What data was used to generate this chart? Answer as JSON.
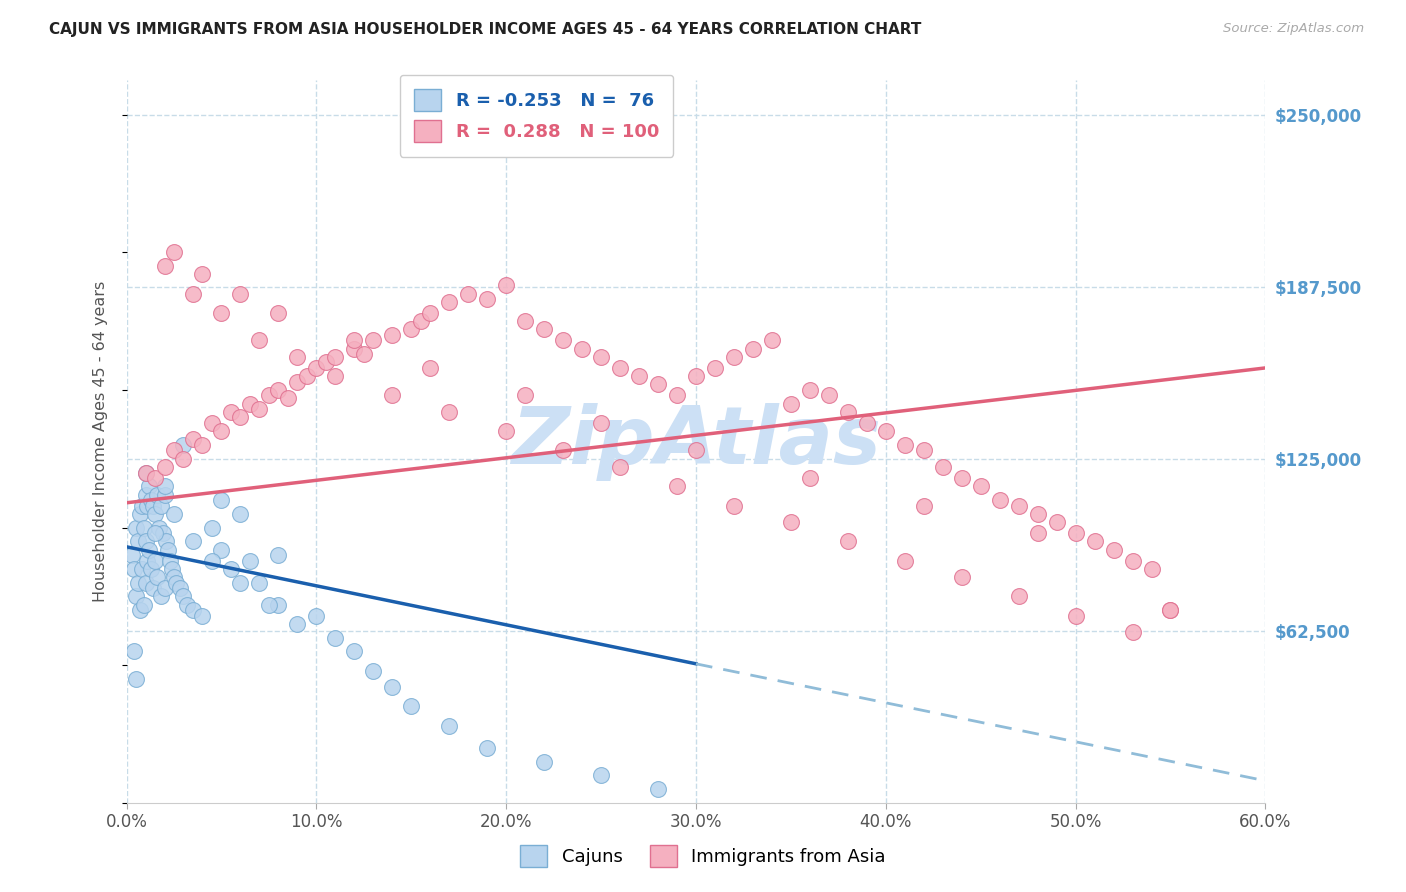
{
  "title": "CAJUN VS IMMIGRANTS FROM ASIA HOUSEHOLDER INCOME AGES 45 - 64 YEARS CORRELATION CHART",
  "source": "Source: ZipAtlas.com",
  "xlabel_vals": [
    0,
    10,
    20,
    30,
    40,
    50,
    60
  ],
  "ylabel_vals": [
    62500,
    125000,
    187500,
    250000
  ],
  "ylabel_labels": [
    "$62,500",
    "$125,000",
    "$187,500",
    "$250,000"
  ],
  "xlim": [
    0,
    60
  ],
  "ylim": [
    0,
    262500
  ],
  "ylabel": "Householder Income Ages 45 - 64 years",
  "cajun_color": "#b8d4ee",
  "cajun_edge": "#7aaed4",
  "asia_color": "#f5b0c0",
  "asia_edge": "#e07090",
  "cajun_R": -0.253,
  "cajun_N": 76,
  "asia_R": 0.288,
  "asia_N": 100,
  "background_color": "#ffffff",
  "grid_color": "#c8dce8",
  "watermark": "ZipAtlas",
  "watermark_color": "#ddeeff",
  "title_color": "#222222",
  "source_color": "#aaaaaa",
  "right_axis_color": "#5599cc",
  "cajun_line_color": "#1a5fad",
  "cajun_dashed_color": "#90bcd8",
  "asia_line_color": "#e0607a",
  "cajun_trend_x0": 0,
  "cajun_trend_y0": 93000,
  "cajun_trend_x1": 60,
  "cajun_trend_y1": 8000,
  "cajun_solid_end": 30,
  "asia_trend_x0": 0,
  "asia_trend_y0": 109000,
  "asia_trend_x1": 60,
  "asia_trend_y1": 158000,
  "cajun_scatter_x": [
    0.3,
    0.4,
    0.5,
    0.5,
    0.6,
    0.6,
    0.7,
    0.7,
    0.8,
    0.8,
    0.9,
    0.9,
    1.0,
    1.0,
    1.0,
    1.1,
    1.1,
    1.2,
    1.2,
    1.3,
    1.3,
    1.4,
    1.4,
    1.5,
    1.5,
    1.6,
    1.6,
    1.7,
    1.8,
    1.8,
    1.9,
    2.0,
    2.0,
    2.1,
    2.2,
    2.3,
    2.4,
    2.5,
    2.6,
    2.8,
    3.0,
    3.2,
    3.5,
    4.0,
    4.5,
    5.0,
    5.5,
    6.0,
    6.5,
    7.0,
    8.0,
    9.0,
    10.0,
    11.0,
    12.0,
    13.0,
    14.0,
    15.0,
    17.0,
    19.0,
    22.0,
    25.0,
    28.0,
    5.0,
    8.0,
    3.0,
    0.4,
    0.5,
    1.0,
    1.5,
    2.0,
    2.5,
    3.5,
    4.5,
    6.0,
    7.5
  ],
  "cajun_scatter_y": [
    90000,
    85000,
    100000,
    75000,
    95000,
    80000,
    105000,
    70000,
    108000,
    85000,
    100000,
    72000,
    112000,
    95000,
    80000,
    108000,
    88000,
    115000,
    92000,
    110000,
    85000,
    108000,
    78000,
    105000,
    88000,
    112000,
    82000,
    100000,
    108000,
    75000,
    98000,
    112000,
    78000,
    95000,
    92000,
    88000,
    85000,
    82000,
    80000,
    78000,
    75000,
    72000,
    70000,
    68000,
    100000,
    92000,
    85000,
    105000,
    88000,
    80000,
    72000,
    65000,
    68000,
    60000,
    55000,
    48000,
    42000,
    35000,
    28000,
    20000,
    15000,
    10000,
    5000,
    110000,
    90000,
    130000,
    55000,
    45000,
    120000,
    98000,
    115000,
    105000,
    95000,
    88000,
    80000,
    72000
  ],
  "asia_scatter_x": [
    1.0,
    1.5,
    2.0,
    2.5,
    3.0,
    3.5,
    4.0,
    4.5,
    5.0,
    5.5,
    6.0,
    6.5,
    7.0,
    7.5,
    8.0,
    8.5,
    9.0,
    9.5,
    10.0,
    10.5,
    11.0,
    12.0,
    12.5,
    13.0,
    14.0,
    15.0,
    15.5,
    16.0,
    17.0,
    18.0,
    19.0,
    20.0,
    21.0,
    22.0,
    23.0,
    24.0,
    25.0,
    26.0,
    27.0,
    28.0,
    29.0,
    30.0,
    31.0,
    32.0,
    33.0,
    34.0,
    35.0,
    36.0,
    37.0,
    38.0,
    39.0,
    40.0,
    41.0,
    42.0,
    43.0,
    44.0,
    45.0,
    46.0,
    47.0,
    48.0,
    49.0,
    50.0,
    51.0,
    52.0,
    53.0,
    54.0,
    55.0,
    2.0,
    3.5,
    5.0,
    7.0,
    9.0,
    11.0,
    14.0,
    17.0,
    20.0,
    23.0,
    26.0,
    29.0,
    32.0,
    35.0,
    38.0,
    41.0,
    44.0,
    47.0,
    50.0,
    53.0,
    2.5,
    4.0,
    6.0,
    8.0,
    12.0,
    16.0,
    21.0,
    25.0,
    30.0,
    36.0,
    42.0,
    48.0,
    55.0
  ],
  "asia_scatter_y": [
    120000,
    118000,
    122000,
    128000,
    125000,
    132000,
    130000,
    138000,
    135000,
    142000,
    140000,
    145000,
    143000,
    148000,
    150000,
    147000,
    153000,
    155000,
    158000,
    160000,
    162000,
    165000,
    163000,
    168000,
    170000,
    172000,
    175000,
    178000,
    182000,
    185000,
    183000,
    188000,
    175000,
    172000,
    168000,
    165000,
    162000,
    158000,
    155000,
    152000,
    148000,
    155000,
    158000,
    162000,
    165000,
    168000,
    145000,
    150000,
    148000,
    142000,
    138000,
    135000,
    130000,
    128000,
    122000,
    118000,
    115000,
    110000,
    108000,
    105000,
    102000,
    98000,
    95000,
    92000,
    88000,
    85000,
    70000,
    195000,
    185000,
    178000,
    168000,
    162000,
    155000,
    148000,
    142000,
    135000,
    128000,
    122000,
    115000,
    108000,
    102000,
    95000,
    88000,
    82000,
    75000,
    68000,
    62000,
    200000,
    192000,
    185000,
    178000,
    168000,
    158000,
    148000,
    138000,
    128000,
    118000,
    108000,
    98000,
    70000
  ]
}
